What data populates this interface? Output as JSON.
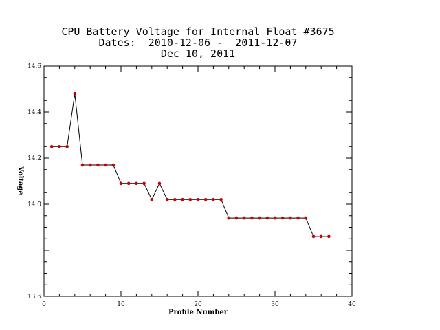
{
  "chart_data": {
    "type": "line",
    "title": [
      "CPU Battery Voltage for Internal Float #3675",
      "Dates:  2010-12-06 -  2011-12-07",
      "Dec 10, 2011"
    ],
    "xlabel": "Profile Number",
    "ylabel": "Voltage",
    "xlim": [
      0,
      40
    ],
    "ylim": [
      13.6,
      14.6
    ],
    "xticks": [
      "0",
      "10",
      "20",
      "30",
      "40"
    ],
    "yticks": [
      "13.6",
      "14.0",
      "14.2",
      "14.4",
      "14.6"
    ],
    "ytick_values": [
      13.6,
      14.0,
      14.2,
      14.4,
      14.6
    ],
    "grid": false,
    "line_color": "#000000",
    "marker_color": "#cc0000",
    "x": [
      1,
      2,
      3,
      4,
      5,
      6,
      7,
      8,
      9,
      10,
      11,
      12,
      13,
      14,
      15,
      16,
      17,
      18,
      19,
      20,
      21,
      22,
      23,
      24,
      25,
      26,
      27,
      28,
      29,
      30,
      31,
      32,
      33,
      34,
      35,
      36,
      37
    ],
    "y": [
      14.25,
      14.25,
      14.25,
      14.48,
      14.17,
      14.17,
      14.17,
      14.17,
      14.17,
      14.09,
      14.09,
      14.09,
      14.09,
      14.02,
      14.09,
      14.02,
      14.02,
      14.02,
      14.02,
      14.02,
      14.02,
      14.02,
      14.02,
      13.94,
      13.94,
      13.94,
      13.94,
      13.94,
      13.94,
      13.94,
      13.94,
      13.94,
      13.94,
      13.94,
      13.86,
      13.86,
      13.86
    ]
  }
}
